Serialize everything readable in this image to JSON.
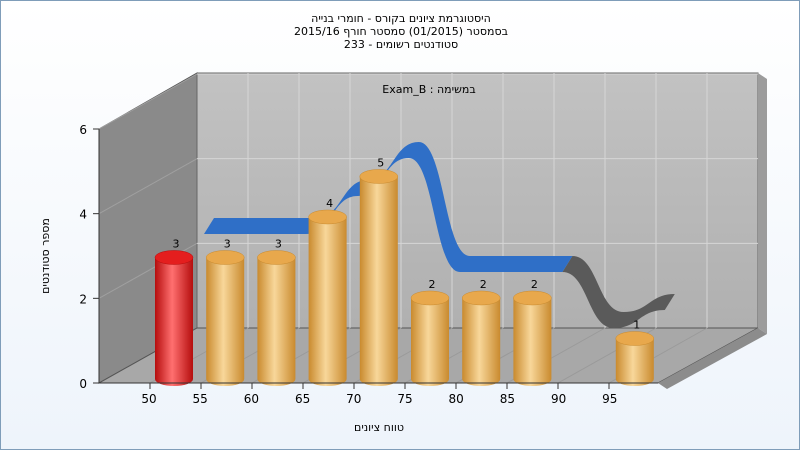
{
  "chart_data": {
    "type": "bar",
    "title": [
      "היסטוגרמת ציונים בקורס - חומרי בנייה",
      "בסמסטר  (01/2015)  סמסטר חורף 2015/16",
      "233 - סטודנטים רשומים"
    ],
    "annotation": "Exam_B : במשימה",
    "xlabel": "טווח ציונים",
    "ylabel": "מספר סטודנטים",
    "categories": [
      "50",
      "55",
      "60",
      "65",
      "70",
      "75",
      "80",
      "85",
      "90",
      "95"
    ],
    "x_tick_labels": [
      "50",
      "55",
      "60",
      "65",
      "70",
      "75",
      "80",
      "85",
      "90",
      "95"
    ],
    "values": [
      3,
      3,
      3,
      4,
      5,
      2,
      2,
      2,
      0,
      1
    ],
    "data_labels": [
      "3",
      "3",
      "3",
      "4",
      "5",
      "2",
      "2",
      "2",
      "",
      "1"
    ],
    "highlight_index": 0,
    "ylim": [
      0,
      6
    ],
    "y_ticks": [
      "0",
      "2",
      "4",
      "6"
    ],
    "trend_series": "smoothed distribution ribbon",
    "grid": true,
    "colors": {
      "bar": "#e8a84c",
      "bar_light": "#f8d79a",
      "bar_dark": "#c98a2e",
      "highlight": "#e41e1e",
      "highlight_light": "#ff7070",
      "highlight_dark": "#b50d0d",
      "ribbon": "#2f6fc7",
      "ribbon_shadow": "#5a5a5a",
      "back_wall": "#b9b9b9",
      "side_wall": "#8a8a8a",
      "floor": "#a8a8a8"
    }
  }
}
